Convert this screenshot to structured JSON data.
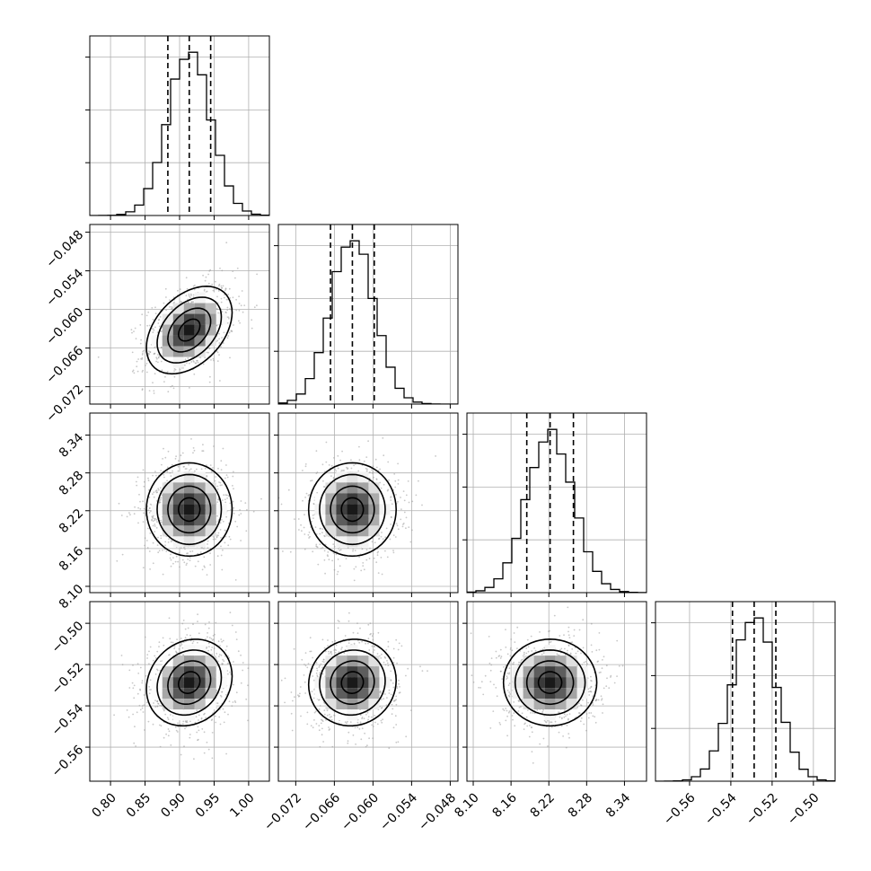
{
  "chart_data": {
    "type": "corner",
    "grid": true,
    "colors": {
      "line": "#000000",
      "grid": "#b0b0b0",
      "scatter": "#9a9a9a",
      "background": "#ffffff"
    },
    "quantiles": [
      0.16,
      0.5,
      0.84
    ],
    "parameters": [
      {
        "range": [
          0.77,
          1.03
        ],
        "mean": 0.914,
        "sd": 0.031,
        "quantile_values": [
          0.883,
          0.914,
          0.945
        ],
        "ticks": [
          0.8,
          0.85,
          0.9,
          0.95,
          1.0
        ],
        "tick_labels": [
          "0.80",
          "0.85",
          "0.90",
          "0.95",
          "1.00"
        ]
      },
      {
        "range": [
          -0.0747,
          -0.0468
        ],
        "mean": -0.0632,
        "sd": 0.0034,
        "quantile_values": [
          -0.0666,
          -0.0632,
          -0.0598
        ],
        "ticks": [
          -0.072,
          -0.066,
          -0.06,
          -0.054,
          -0.048
        ],
        "tick_labels": [
          "−0.072",
          "−0.066",
          "−0.060",
          "−0.054",
          "−0.048"
        ]
      },
      {
        "range": [
          8.09,
          8.375
        ],
        "mean": 8.222,
        "sd": 0.037,
        "quantile_values": [
          8.185,
          8.222,
          8.259
        ],
        "ticks": [
          8.1,
          8.16,
          8.22,
          8.28,
          8.34
        ],
        "tick_labels": [
          "8.10",
          "8.16",
          "8.22",
          "8.28",
          "8.34"
        ]
      },
      {
        "range": [
          -0.5765,
          -0.4895
        ],
        "mean": -0.5287,
        "sd": 0.0105,
        "quantile_values": [
          -0.5392,
          -0.5287,
          -0.5182
        ],
        "ticks": [
          -0.56,
          -0.54,
          -0.52,
          -0.5
        ],
        "tick_labels": [
          "−0.56",
          "−0.54",
          "−0.52",
          "−0.50"
        ]
      }
    ],
    "correlations": [
      [
        1,
        0.4,
        0.0,
        0.15
      ],
      [
        0.4,
        1,
        0.0,
        0.05
      ],
      [
        0.0,
        0.0,
        1,
        0.0
      ],
      [
        0.15,
        0.05,
        0.0,
        1
      ]
    ],
    "contour_levels_sigma": [
      0.5,
      1.0,
      1.5,
      2.0
    ]
  }
}
